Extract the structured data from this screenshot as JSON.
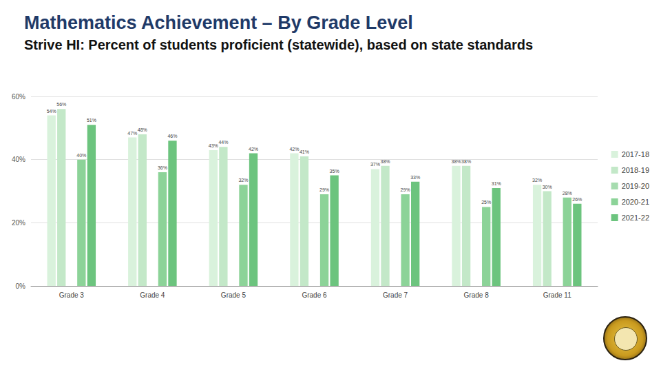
{
  "chart_data": {
    "type": "bar",
    "title": "Mathematics Achievement – By Grade Level",
    "subtitle": "Strive HI: Percent of students proficient (statewide), based on state standards",
    "categories": [
      "Grade 3",
      "Grade 4",
      "Grade 5",
      "Grade 6",
      "Grade 7",
      "Grade 8",
      "Grade 11"
    ],
    "series": [
      {
        "name": "2017-18",
        "color": "#d9f2dc",
        "values": [
          54,
          47,
          43,
          42,
          37,
          38,
          32
        ],
        "value_labels": [
          "54%",
          "47%",
          "43%",
          "42%",
          "37%",
          "38%",
          "32%"
        ]
      },
      {
        "name": "2018-19",
        "color": "#c3e8c8",
        "values": [
          56,
          48,
          44,
          41,
          38,
          38,
          30
        ],
        "value_labels": [
          "56%",
          "48%",
          "44%",
          "41%",
          "38%",
          "38%",
          "30%"
        ]
      },
      {
        "name": "2019-20",
        "color": "#a6dcaf",
        "values": [
          null,
          null,
          null,
          null,
          null,
          null,
          null
        ],
        "value_labels": [
          null,
          null,
          null,
          null,
          null,
          null,
          null
        ]
      },
      {
        "name": "2020-21",
        "color": "#8cd398",
        "values": [
          40,
          36,
          32,
          29,
          29,
          25,
          28
        ],
        "value_labels": [
          "40%",
          "36%",
          "32%",
          "29%",
          "29%",
          "25%",
          "28%"
        ]
      },
      {
        "name": "2021-22",
        "color": "#6cc47e",
        "values": [
          51,
          46,
          42,
          35,
          33,
          31,
          26
        ],
        "value_labels": [
          "51%",
          "46%",
          "42%",
          "35%",
          "33%",
          "31%",
          "26%"
        ]
      }
    ],
    "ylim": [
      0,
      60
    ],
    "yticks": [
      {
        "value": 0,
        "label": "0%"
      },
      {
        "value": 20,
        "label": "20%"
      },
      {
        "value": 40,
        "label": "40%"
      },
      {
        "value": 60,
        "label": "60%"
      }
    ],
    "grid": true,
    "legend": "right",
    "data_labels": true
  }
}
